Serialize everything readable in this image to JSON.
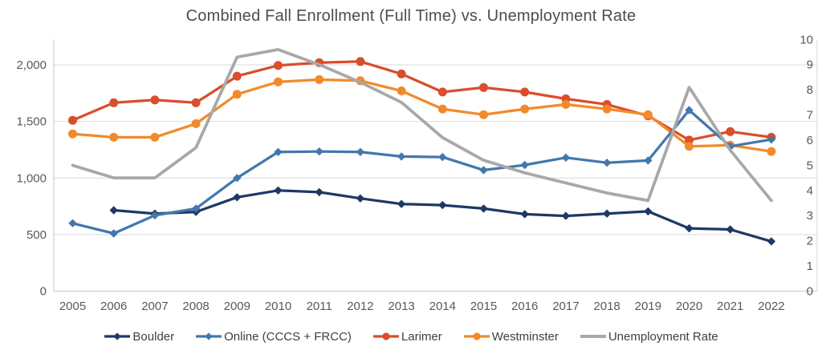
{
  "title": "Combined Fall Enrollment (Full Time) vs. Unemployment Rate",
  "chart_data": {
    "type": "line",
    "x": [
      "2005",
      "2006",
      "2007",
      "2008",
      "2009",
      "2010",
      "2011",
      "2012",
      "2013",
      "2014",
      "2015",
      "2016",
      "2017",
      "2018",
      "2019",
      "2020",
      "2021",
      "2022"
    ],
    "series": [
      {
        "name": "Boulder",
        "axis": "left",
        "color": "#1F3864",
        "marker": "diamond",
        "values": [
          null,
          715,
          685,
          700,
          830,
          890,
          875,
          820,
          770,
          760,
          730,
          680,
          665,
          685,
          705,
          555,
          545,
          440
        ]
      },
      {
        "name": "Online (CCCS + FRCC)",
        "axis": "left",
        "color": "#4377AD",
        "marker": "diamond",
        "values": [
          600,
          510,
          670,
          730,
          1000,
          1230,
          1235,
          1230,
          1190,
          1185,
          1070,
          1115,
          1180,
          1135,
          1155,
          1600,
          1280,
          1340
        ]
      },
      {
        "name": "Larimer",
        "axis": "left",
        "color": "#D94E2C",
        "marker": "circle",
        "values": [
          1510,
          1665,
          1690,
          1665,
          1900,
          1995,
          2020,
          2030,
          1920,
          1760,
          1800,
          1760,
          1700,
          1650,
          1550,
          1335,
          1410,
          1360
        ]
      },
      {
        "name": "Westminster",
        "axis": "left",
        "color": "#F28A2B",
        "marker": "circle",
        "values": [
          1390,
          1360,
          1360,
          1480,
          1740,
          1850,
          1870,
          1860,
          1770,
          1610,
          1560,
          1610,
          1650,
          1610,
          1560,
          1280,
          1290,
          1235
        ]
      },
      {
        "name": "Unemployment Rate",
        "axis": "right",
        "color": "#A8A8A8",
        "marker": "none",
        "values": [
          5.0,
          4.5,
          4.5,
          5.7,
          9.3,
          9.6,
          9.0,
          8.3,
          7.5,
          6.1,
          5.2,
          4.7,
          4.3,
          3.9,
          3.6,
          8.1,
          5.6,
          3.6
        ]
      }
    ],
    "left_axis": {
      "min": 0,
      "max": 2000,
      "tick_values": [
        0,
        500,
        1000,
        1500,
        2000
      ],
      "tick_labels": [
        "0",
        "500",
        "1,000",
        "1,500",
        "2,000"
      ]
    },
    "right_axis": {
      "min": 0,
      "max": 10,
      "tick_values": [
        0,
        1,
        2,
        3,
        4,
        5,
        6,
        7,
        8,
        9,
        10
      ],
      "tick_labels": [
        "0",
        "1",
        "2",
        "3",
        "4",
        "5",
        "6",
        "7",
        "8",
        "9",
        "10"
      ]
    },
    "grid": true,
    "legend_position": "bottom",
    "grid_color": "#D9D9D9",
    "axis_line_color": "#C8C8C8",
    "tick_text_color": "#595959",
    "title_color": "#4D4D4D",
    "legend_text_color": "#404040"
  }
}
